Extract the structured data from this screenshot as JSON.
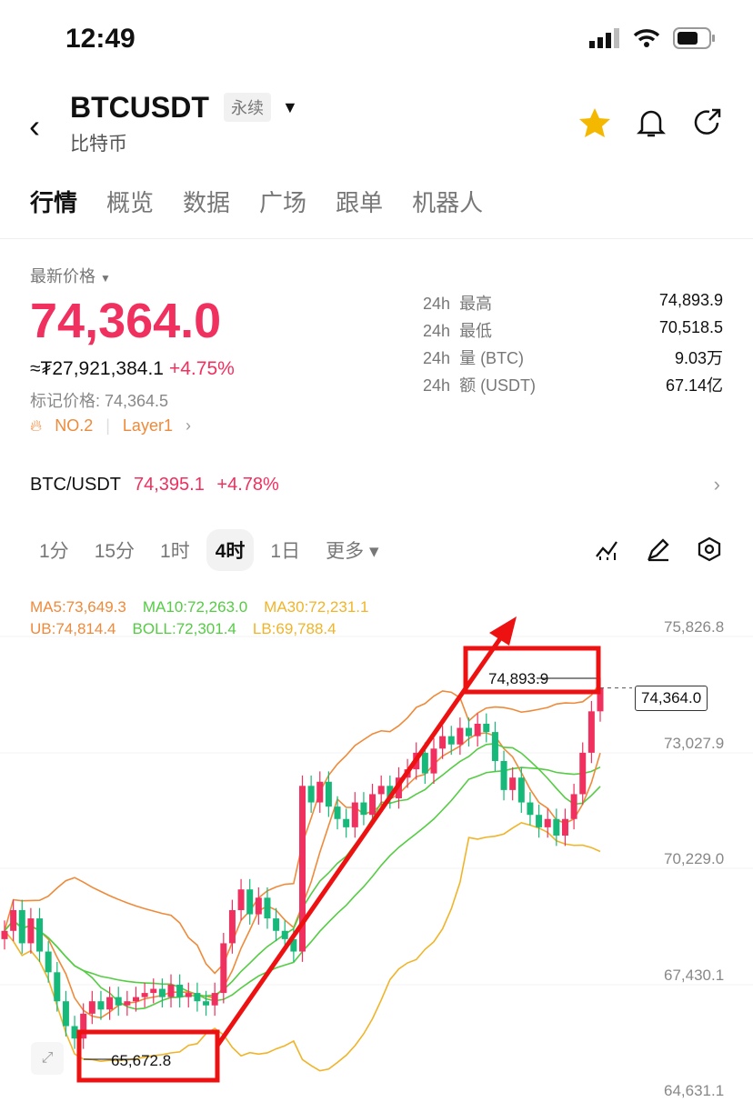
{
  "status": {
    "time": "12:49"
  },
  "header": {
    "symbol": "BTCUSDT",
    "contract_type": "永续",
    "subtitle": "比特币"
  },
  "tabs": [
    {
      "label": "行情",
      "active": true
    },
    {
      "label": "概览"
    },
    {
      "label": "数据"
    },
    {
      "label": "广场"
    },
    {
      "label": "跟单"
    },
    {
      "label": "机器人"
    }
  ],
  "ticker": {
    "latest_label": "最新价格",
    "price": "74,364.0",
    "fiat": "≈₮27,921,384.1",
    "change": "+4.75%",
    "mark_price": "标记价格: 74,364.5",
    "rank": "NO.2",
    "category": "Layer1"
  },
  "stats": [
    {
      "period": "24h",
      "label": "最高",
      "value": "74,893.9"
    },
    {
      "period": "24h",
      "label": "最低",
      "value": "70,518.5"
    },
    {
      "period": "24h",
      "label": "量 (BTC)",
      "value": "9.03万"
    },
    {
      "period": "24h",
      "label": "额 (USDT)",
      "value": "67.14亿"
    }
  ],
  "spot": {
    "pair": "BTC/USDT",
    "price": "74,395.1",
    "change": "+4.78%"
  },
  "intervals": [
    {
      "label": "1分"
    },
    {
      "label": "15分"
    },
    {
      "label": "1时"
    },
    {
      "label": "4时",
      "active": true
    },
    {
      "label": "1日"
    },
    {
      "label": "更多 ▾"
    }
  ],
  "indicators": {
    "ma5": "MA5:73,649.3",
    "ma10": "MA10:72,263.0",
    "ma30": "MA30:72,231.1",
    "ub": "UB:74,814.4",
    "boll": "BOLL:72,301.4",
    "lb": "LB:69,788.4"
  },
  "colors": {
    "up": "#f0305e",
    "down": "#16b979",
    "ma5": "#ef8a3a",
    "ma10": "#55cc44",
    "ma30": "#f0b429",
    "annotation": "#ee1111"
  },
  "chart_data": {
    "type": "candlestick",
    "y_ticks": [
      "75,826.8",
      "73,027.9",
      "70,229.0",
      "67,430.1",
      "64,631.1"
    ],
    "ylim": [
      64631.1,
      75826.8
    ],
    "current_price": "74,364.0",
    "high_label": "74,893.9",
    "low_label": "65,672.8",
    "closes": [
      68500,
      69000,
      68200,
      68800,
      68000,
      67500,
      66800,
      66200,
      65900,
      66500,
      66800,
      66600,
      66900,
      66700,
      66800,
      66900,
      67000,
      67100,
      66900,
      67200,
      66900,
      67000,
      66800,
      66700,
      67000,
      68200,
      69000,
      69500,
      68900,
      69300,
      68800,
      68500,
      68300,
      68000,
      72000,
      71600,
      72100,
      71500,
      71200,
      71000,
      71600,
      71300,
      71800,
      72000,
      71700,
      72200,
      72400,
      72800,
      72300,
      72900,
      73200,
      73000,
      73400,
      73200,
      73500,
      73300,
      72600,
      71900,
      72200,
      71600,
      71300,
      71000,
      71200,
      70800,
      71200,
      71800,
      72800,
      73800,
      74364
    ]
  }
}
